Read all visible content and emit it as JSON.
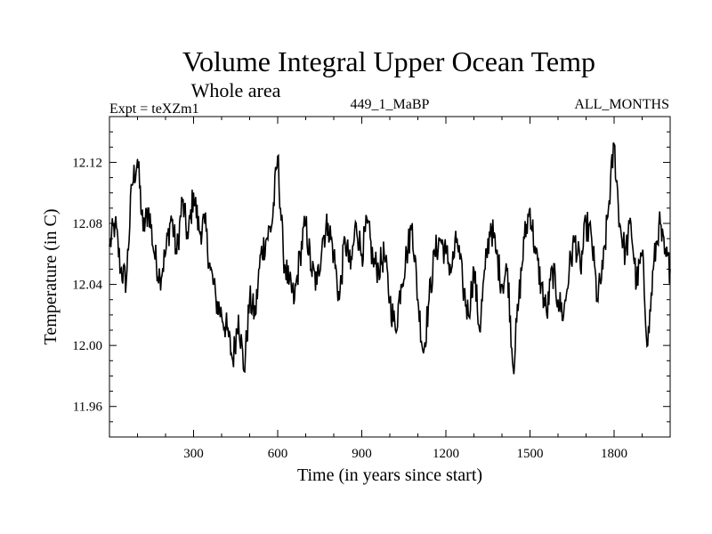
{
  "chart_data": {
    "type": "line",
    "title": "Volume Integral Upper Ocean Temp",
    "subtitle": "Whole area",
    "experiment_label": "Expt = teXZm1",
    "run_label": "449_1_MaBP",
    "period_label": "ALL_MONTHS",
    "xlabel": "Time (in years since start)",
    "ylabel": "Temperature (in C)",
    "xlim": [
      0,
      2000
    ],
    "ylim": [
      11.94,
      12.15
    ],
    "x_ticks": [
      300,
      600,
      900,
      1200,
      1500,
      1800
    ],
    "x_tick_labels": [
      "300",
      "600",
      "900",
      "1200",
      "1500",
      "1800"
    ],
    "y_ticks": [
      11.96,
      12.0,
      12.04,
      12.08,
      12.12
    ],
    "y_tick_labels": [
      "11.96",
      "12.00",
      "12.04",
      "12.08",
      "12.12"
    ],
    "grid": false,
    "series": [
      {
        "name": "Volume integral upper ocean temperature",
        "x": [
          0,
          20,
          40,
          60,
          80,
          100,
          120,
          140,
          160,
          180,
          200,
          220,
          240,
          260,
          280,
          300,
          320,
          340,
          360,
          380,
          400,
          420,
          440,
          460,
          480,
          500,
          520,
          540,
          560,
          580,
          600,
          620,
          640,
          660,
          680,
          700,
          720,
          740,
          760,
          780,
          800,
          820,
          840,
          860,
          880,
          900,
          920,
          940,
          960,
          980,
          1000,
          1020,
          1040,
          1060,
          1080,
          1100,
          1120,
          1140,
          1160,
          1180,
          1200,
          1220,
          1240,
          1260,
          1280,
          1300,
          1320,
          1340,
          1360,
          1380,
          1400,
          1420,
          1440,
          1460,
          1480,
          1500,
          1520,
          1540,
          1560,
          1580,
          1600,
          1620,
          1640,
          1660,
          1680,
          1700,
          1720,
          1740,
          1760,
          1780,
          1800,
          1820,
          1840,
          1860,
          1880,
          1900,
          1920,
          1940,
          1960,
          1980,
          2000
        ],
        "values": [
          12.065,
          12.08,
          12.05,
          12.042,
          12.105,
          12.122,
          12.075,
          12.09,
          12.06,
          12.045,
          12.06,
          12.085,
          12.06,
          12.095,
          12.07,
          12.1,
          12.075,
          12.08,
          12.05,
          12.03,
          12.02,
          12.01,
          11.99,
          12.02,
          11.983,
          12.03,
          12.02,
          12.06,
          12.07,
          12.08,
          12.124,
          12.06,
          12.04,
          12.03,
          12.06,
          12.08,
          12.05,
          12.04,
          12.07,
          12.08,
          12.06,
          12.03,
          12.07,
          12.05,
          12.08,
          12.06,
          12.08,
          12.055,
          12.05,
          12.06,
          12.03,
          12.01,
          12.04,
          12.06,
          12.08,
          12.03,
          11.995,
          12.03,
          12.06,
          12.07,
          12.06,
          12.05,
          12.07,
          12.04,
          12.02,
          12.05,
          12.01,
          12.05,
          12.08,
          12.06,
          12.04,
          12.05,
          11.985,
          12.03,
          12.07,
          12.09,
          12.06,
          12.04,
          12.02,
          12.05,
          12.03,
          12.02,
          12.05,
          12.07,
          12.05,
          12.08,
          12.07,
          12.03,
          12.05,
          12.09,
          12.132,
          12.08,
          12.06,
          12.08,
          12.04,
          12.06,
          12.0,
          12.05,
          12.08,
          12.06,
          12.05
        ]
      }
    ]
  }
}
